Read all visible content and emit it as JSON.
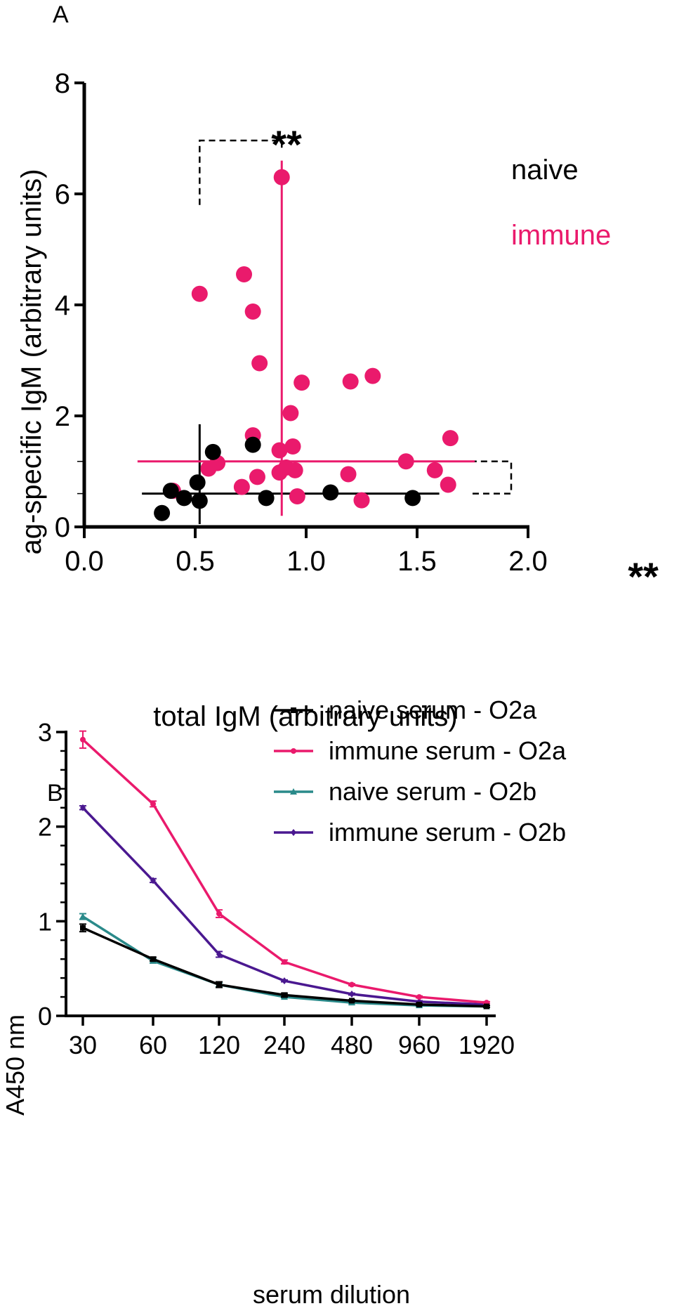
{
  "panels": {
    "a": "A",
    "b": "B"
  },
  "colors": {
    "naive": "#000000",
    "immune": "#EA1A6C",
    "naive_o2b": "#2A8A8A",
    "immune_o2b": "#4A1890"
  },
  "chart_data": [
    {
      "type": "scatter",
      "panel": "A",
      "title": "",
      "xlabel": "total IgM (arbitrary units)",
      "ylabel": "ag-specific IgM (arbitrary units)",
      "xlim": [
        0,
        2
      ],
      "ylim": [
        0,
        8
      ],
      "xticks": [
        "0.0",
        "0.5",
        "1.0",
        "1.5",
        "2.0"
      ],
      "yticks": [
        "0",
        "2",
        "4",
        "6",
        "8"
      ],
      "legend_location": "top-right",
      "series": [
        {
          "name": "naive",
          "color": "#000000",
          "x": [
            0.35,
            0.39,
            0.45,
            0.51,
            0.52,
            0.58,
            0.76,
            0.82,
            1.11,
            1.48
          ],
          "y": [
            0.25,
            0.65,
            0.52,
            0.8,
            0.47,
            1.35,
            1.48,
            0.52,
            0.62,
            0.52
          ],
          "median_x": 0.52,
          "median_y": 0.6,
          "median_x_range": [
            0.26,
            1.6
          ],
          "median_y_range": [
            0.05,
            1.85
          ]
        },
        {
          "name": "immune",
          "color": "#EA1A6C",
          "x": [
            0.4,
            0.52,
            0.56,
            0.6,
            0.71,
            0.72,
            0.76,
            0.76,
            0.78,
            0.79,
            0.88,
            0.88,
            0.89,
            0.91,
            0.93,
            0.94,
            0.95,
            0.96,
            0.98,
            1.19,
            1.2,
            1.25,
            1.3,
            1.45,
            1.58,
            1.64,
            1.65
          ],
          "y": [
            0.65,
            4.2,
            1.05,
            1.15,
            0.72,
            4.55,
            1.65,
            3.88,
            0.9,
            2.95,
            1.38,
            0.98,
            6.3,
            1.07,
            2.05,
            1.45,
            1.02,
            0.55,
            2.6,
            0.95,
            2.62,
            0.48,
            2.72,
            1.18,
            1.02,
            0.76,
            1.6
          ],
          "median_x": 0.89,
          "median_y": 1.18,
          "median_x_range": [
            0.24,
            1.76
          ],
          "median_y_range": [
            0.2,
            6.6
          ]
        }
      ],
      "annotations": [
        {
          "text": "**",
          "between": "x medians"
        },
        {
          "text": "**",
          "between": "y medians"
        }
      ]
    },
    {
      "type": "line",
      "panel": "B",
      "title": "",
      "xlabel": "serum dilution",
      "ylabel": "A450 nm",
      "categories": [
        "30",
        "60",
        "120",
        "240",
        "480",
        "960",
        "1920"
      ],
      "ylim": [
        0,
        3
      ],
      "yticks": [
        "0",
        "1",
        "2",
        "3"
      ],
      "legend_location": "top-right",
      "series": [
        {
          "name": "naive serum - O2a",
          "color": "#000000",
          "marker": "square",
          "values": [
            0.93,
            0.6,
            0.33,
            0.22,
            0.16,
            0.12,
            0.1
          ],
          "errors": [
            0.04,
            0.02,
            0.03,
            0.02,
            0.01,
            0.01,
            0.01
          ]
        },
        {
          "name": "immune serum - O2a",
          "color": "#EA1A6C",
          "marker": "circle",
          "values": [
            2.92,
            2.24,
            1.08,
            0.57,
            0.33,
            0.2,
            0.14
          ],
          "errors": [
            0.09,
            0.03,
            0.04,
            0.02,
            0.01,
            0.01,
            0.01
          ]
        },
        {
          "name": "naive serum - O2b",
          "color": "#2A8A8A",
          "marker": "triangle",
          "values": [
            1.05,
            0.58,
            0.33,
            0.2,
            0.14,
            0.11,
            0.1
          ],
          "errors": [
            0.03,
            0.02,
            0.02,
            0.01,
            0.01,
            0.01,
            0.01
          ]
        },
        {
          "name": "immune serum - O2b",
          "color": "#4A1890",
          "marker": "diamond",
          "values": [
            2.2,
            1.43,
            0.65,
            0.37,
            0.23,
            0.15,
            0.12
          ],
          "errors": [
            0.02,
            0.02,
            0.03,
            0.01,
            0.01,
            0.01,
            0.01
          ]
        }
      ]
    }
  ]
}
